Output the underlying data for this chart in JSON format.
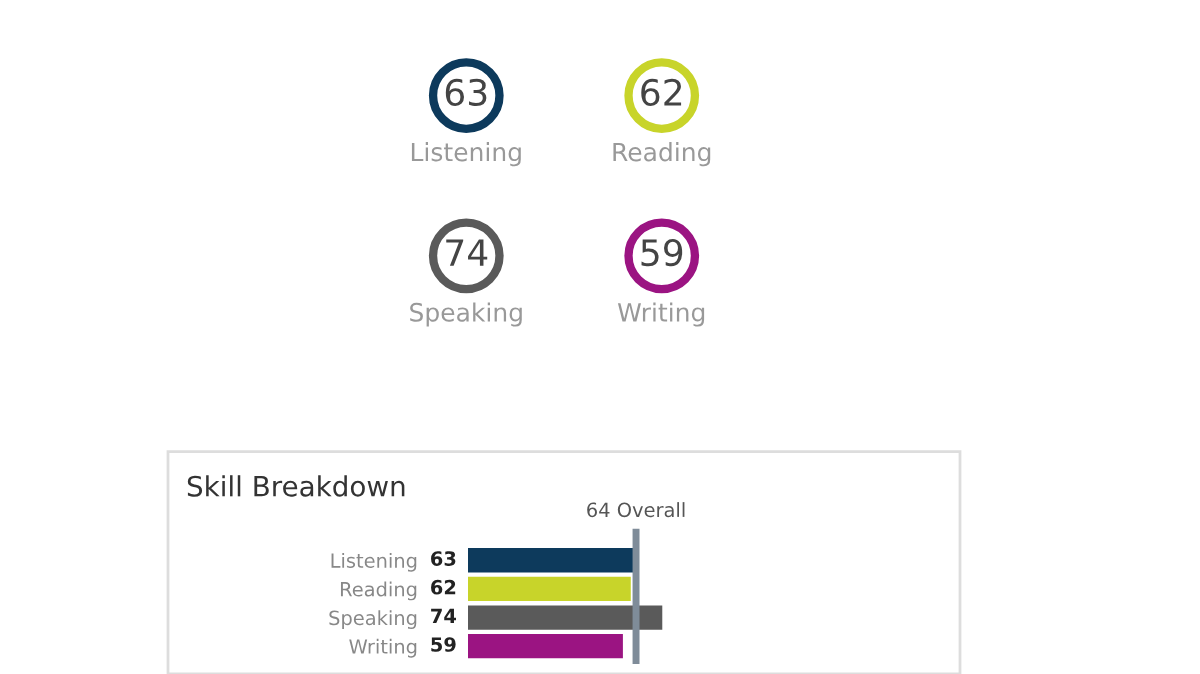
{
  "chart_data": [
    {
      "type": "other",
      "categories": [
        "Listening",
        "Reading",
        "Speaking",
        "Writing"
      ],
      "values": [
        63,
        62,
        74,
        59
      ],
      "value_labels": [
        "63",
        "62",
        "74",
        "59"
      ],
      "colors": [
        "#0d3a5c",
        "#c8d42a",
        "#5a5a5a",
        "#9b1482"
      ]
    },
    {
      "type": "bar",
      "orientation": "horizontal",
      "title": "Skill Breakdown",
      "categories": [
        "Listening",
        "Reading",
        "Speaking",
        "Writing"
      ],
      "values": [
        63,
        62,
        74,
        59
      ],
      "colors": [
        "#0d3a5c",
        "#c8d42a",
        "#5a5a5a",
        "#9b1482"
      ],
      "data_labels": true,
      "ref_lines": [
        {
          "axis": "x",
          "value": 64,
          "label": "64 Overall",
          "color": "#7f8c99"
        }
      ]
    }
  ]
}
